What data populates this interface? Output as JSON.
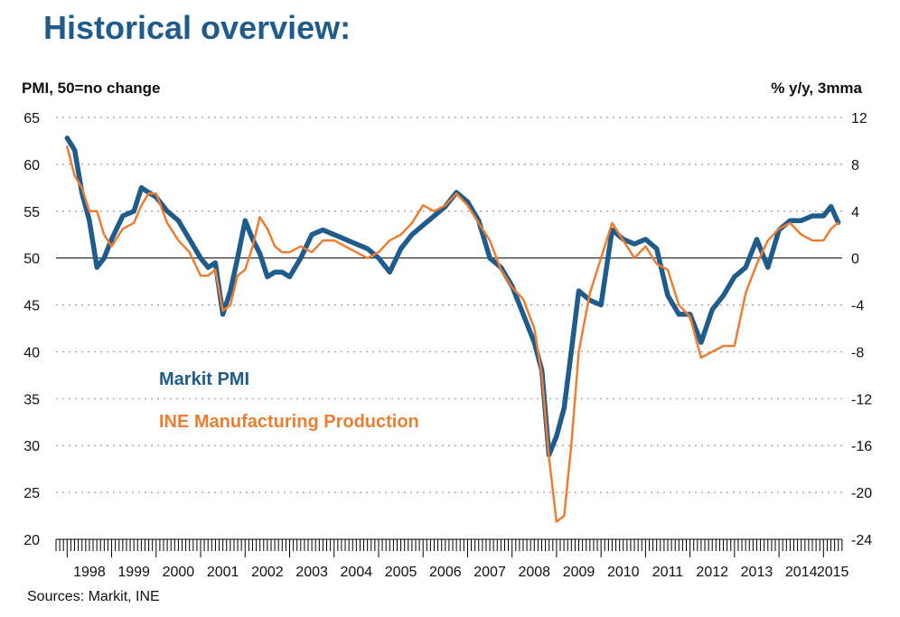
{
  "header": {
    "title": "Historical overview:",
    "left_axis_title": "PMI, 50=no change",
    "right_axis_title": "% y/y, 3mma",
    "source": "Sources: Markit, INE"
  },
  "colors": {
    "pmi": "#1f5c8b",
    "ine": "#ed7d31",
    "grid": "#9a9a9a",
    "axis": "#000000"
  },
  "chart_data": {
    "type": "line",
    "title": "Historical overview:",
    "xlabel": "",
    "ylabel": "PMI, 50=no change",
    "y2label": "% y/y, 3mma",
    "xlim": [
      1997.75,
      2015.42
    ],
    "ylim": [
      20,
      65
    ],
    "y2lim": [
      -24,
      12
    ],
    "y_ticks": [
      20,
      25,
      30,
      35,
      40,
      45,
      50,
      55,
      60,
      65
    ],
    "y2_ticks": [
      -24,
      -20,
      -16,
      -12,
      -8,
      -4,
      0,
      4,
      8,
      12
    ],
    "year_labels": [
      "1998",
      "1999",
      "2000",
      "2001",
      "2002",
      "2003",
      "2004",
      "2005",
      "2006",
      "2007",
      "2008",
      "2009",
      "2010",
      "2011",
      "2012",
      "2013",
      "2014",
      "2015"
    ],
    "grid": true,
    "series": [
      {
        "name": "Markit PMI",
        "axis": "left",
        "x": [
          1998.0,
          1998.17,
          1998.33,
          1998.5,
          1998.67,
          1998.83,
          1999.0,
          1999.25,
          1999.5,
          1999.67,
          1999.83,
          2000.0,
          2000.25,
          2000.5,
          2000.75,
          2001.0,
          2001.17,
          2001.33,
          2001.5,
          2001.67,
          2001.83,
          2002.0,
          2002.17,
          2002.33,
          2002.5,
          2002.67,
          2002.83,
          2003.0,
          2003.25,
          2003.5,
          2003.75,
          2004.0,
          2004.25,
          2004.5,
          2004.75,
          2005.0,
          2005.25,
          2005.5,
          2005.75,
          2006.0,
          2006.25,
          2006.5,
          2006.75,
          2007.0,
          2007.25,
          2007.5,
          2007.75,
          2008.0,
          2008.25,
          2008.5,
          2008.67,
          2008.83,
          2009.0,
          2009.17,
          2009.33,
          2009.5,
          2009.75,
          2010.0,
          2010.25,
          2010.5,
          2010.75,
          2011.0,
          2011.25,
          2011.5,
          2011.75,
          2012.0,
          2012.25,
          2012.5,
          2012.75,
          2013.0,
          2013.25,
          2013.5,
          2013.75,
          2014.0,
          2014.25,
          2014.5,
          2014.75,
          2015.0,
          2015.17,
          2015.33
        ],
        "values": [
          62.8,
          61.5,
          57.0,
          54.0,
          49.0,
          50.0,
          52.0,
          54.5,
          55.0,
          57.5,
          57.0,
          56.5,
          55.0,
          54.0,
          52.0,
          50.0,
          49.0,
          49.5,
          44.0,
          46.5,
          50.0,
          54.0,
          52.0,
          50.5,
          48.0,
          48.5,
          48.5,
          48.0,
          50.0,
          52.5,
          53.0,
          52.5,
          52.0,
          51.5,
          51.0,
          50.0,
          48.5,
          51.0,
          52.5,
          53.5,
          54.5,
          55.5,
          57.0,
          56.0,
          54.0,
          50.0,
          49.0,
          47.0,
          44.0,
          41.0,
          38.0,
          29.0,
          31.0,
          34.0,
          40.0,
          46.5,
          45.5,
          45.0,
          53.0,
          52.0,
          51.5,
          52.0,
          51.0,
          46.0,
          44.0,
          44.0,
          41.0,
          44.5,
          46.0,
          48.0,
          49.0,
          52.0,
          49.0,
          53.0,
          54.0,
          54.0,
          54.5,
          54.5,
          55.5,
          53.8
        ]
      },
      {
        "name": "INE Manufacturing Production",
        "axis": "right",
        "x": [
          1998.0,
          1998.17,
          1998.33,
          1998.5,
          1998.67,
          1998.83,
          1999.0,
          1999.25,
          1999.5,
          1999.67,
          1999.83,
          2000.0,
          2000.25,
          2000.5,
          2000.75,
          2001.0,
          2001.17,
          2001.33,
          2001.5,
          2001.67,
          2001.83,
          2002.0,
          2002.17,
          2002.33,
          2002.5,
          2002.67,
          2002.83,
          2003.0,
          2003.25,
          2003.5,
          2003.75,
          2004.0,
          2004.25,
          2004.5,
          2004.75,
          2005.0,
          2005.25,
          2005.5,
          2005.75,
          2006.0,
          2006.25,
          2006.5,
          2006.75,
          2007.0,
          2007.25,
          2007.5,
          2007.75,
          2008.0,
          2008.25,
          2008.5,
          2008.67,
          2008.83,
          2009.0,
          2009.17,
          2009.33,
          2009.5,
          2009.75,
          2010.0,
          2010.25,
          2010.5,
          2010.75,
          2011.0,
          2011.25,
          2011.5,
          2011.75,
          2012.0,
          2012.25,
          2012.5,
          2012.75,
          2013.0,
          2013.25,
          2013.5,
          2013.75,
          2014.0,
          2014.25,
          2014.5,
          2014.75,
          2015.0,
          2015.17,
          2015.33
        ],
        "values": [
          9.5,
          7.0,
          6.0,
          4.0,
          4.0,
          2.0,
          1.0,
          2.5,
          3.0,
          4.5,
          5.5,
          5.5,
          3.0,
          1.5,
          0.5,
          -1.5,
          -1.5,
          -1.0,
          -4.5,
          -4.0,
          -1.5,
          -1.0,
          1.0,
          3.5,
          2.5,
          1.0,
          0.5,
          0.5,
          1.0,
          0.5,
          1.5,
          1.5,
          1.0,
          0.5,
          0.0,
          0.5,
          1.5,
          2.0,
          3.0,
          4.5,
          4.0,
          4.5,
          5.5,
          4.5,
          3.0,
          1.5,
          -1.0,
          -2.5,
          -3.5,
          -6.0,
          -10.0,
          -17.0,
          -22.5,
          -22.0,
          -16.0,
          -8.0,
          -3.0,
          0.0,
          3.0,
          1.5,
          0.0,
          1.0,
          -0.5,
          -1.0,
          -4.0,
          -5.0,
          -8.5,
          -8.0,
          -7.5,
          -7.5,
          -3.0,
          -0.5,
          1.5,
          2.5,
          3.0,
          2.0,
          1.5,
          1.5,
          2.5,
          3.0
        ]
      }
    ]
  }
}
